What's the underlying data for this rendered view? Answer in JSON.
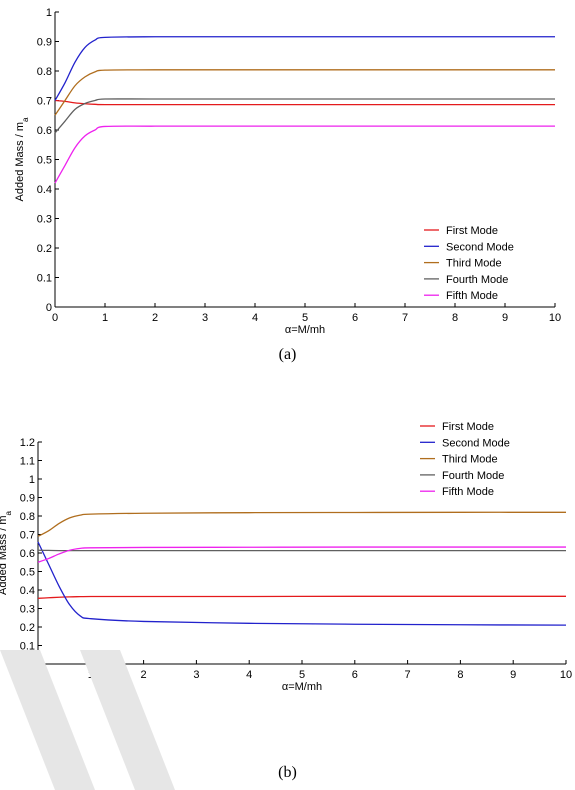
{
  "figures": [
    {
      "caption": "(a)",
      "chart_data": {
        "type": "line",
        "xlabel": "α=M/mh",
        "ylabel": "Added Mass / m",
        "ylabel_sub": "a",
        "xlim": [
          0,
          10
        ],
        "ylim": [
          0,
          1
        ],
        "xticks": [
          "0",
          "1",
          "2",
          "3",
          "4",
          "5",
          "6",
          "7",
          "8",
          "9",
          "10"
        ],
        "yticks": [
          "0",
          "0.1",
          "0.2",
          "0.3",
          "0.4",
          "0.5",
          "0.6",
          "0.7",
          "0.8",
          "0.9",
          "1"
        ],
        "legend_position": "bottom-right",
        "grid": false,
        "x": [
          0,
          0.2,
          0.4,
          0.6,
          0.8,
          1,
          2,
          4,
          6,
          8,
          10
        ],
        "series": [
          {
            "name": "First Mode",
            "color": "#e41a1c",
            "values": [
              0.7,
              0.697,
              0.692,
              0.689,
              0.687,
              0.686,
              0.686,
              0.686,
              0.686,
              0.686,
              0.686
            ]
          },
          {
            "name": "Second Mode",
            "color": "#2222cc",
            "values": [
              0.7,
              0.76,
              0.83,
              0.88,
              0.905,
              0.914,
              0.916,
              0.916,
              0.916,
              0.916,
              0.916
            ]
          },
          {
            "name": "Third Mode",
            "color": "#b06e1e",
            "values": [
              0.65,
              0.7,
              0.75,
              0.78,
              0.797,
              0.803,
              0.804,
              0.804,
              0.804,
              0.804,
              0.804
            ]
          },
          {
            "name": "Fourth Mode",
            "color": "#606060",
            "values": [
              0.59,
              0.63,
              0.67,
              0.69,
              0.7,
              0.705,
              0.705,
              0.705,
              0.705,
              0.705,
              0.705
            ]
          },
          {
            "name": "Fifth Mode",
            "color": "#ee22ee",
            "values": [
              0.42,
              0.48,
              0.54,
              0.58,
              0.6,
              0.612,
              0.613,
              0.613,
              0.613,
              0.613,
              0.613
            ]
          }
        ]
      }
    },
    {
      "caption": "(b)",
      "chart_data": {
        "type": "line",
        "xlabel": "α=M/mh",
        "ylabel": "Added Mass / m",
        "ylabel_sub": "a",
        "xlim": [
          0,
          10
        ],
        "ylim": [
          0,
          1.2
        ],
        "xticks": [
          "0",
          "1",
          "2",
          "3",
          "4",
          "5",
          "6",
          "7",
          "8",
          "9",
          "10"
        ],
        "yticks": [
          "0",
          "0.1",
          "0.2",
          "0.3",
          "0.4",
          "0.5",
          "0.6",
          "0.7",
          "0.8",
          "0.9",
          "1",
          "1.1",
          "1.2"
        ],
        "legend_position": "top-right",
        "grid": false,
        "x": [
          0,
          0.2,
          0.4,
          0.6,
          0.8,
          1,
          2,
          4,
          6,
          8,
          10
        ],
        "series": [
          {
            "name": "First Mode",
            "color": "#e41a1c",
            "values": [
              0.355,
              0.358,
              0.361,
              0.363,
              0.364,
              0.365,
              0.365,
              0.365,
              0.366,
              0.366,
              0.366
            ]
          },
          {
            "name": "Second Mode",
            "color": "#2222cc",
            "values": [
              0.66,
              0.54,
              0.42,
              0.32,
              0.26,
              0.245,
              0.23,
              0.22,
              0.215,
              0.212,
              0.21
            ]
          },
          {
            "name": "Third Mode",
            "color": "#b06e1e",
            "values": [
              0.69,
              0.72,
              0.76,
              0.79,
              0.805,
              0.81,
              0.815,
              0.818,
              0.819,
              0.82,
              0.82
            ]
          },
          {
            "name": "Fourth Mode",
            "color": "#606060",
            "values": [
              0.615,
              0.614,
              0.613,
              0.613,
              0.613,
              0.613,
              0.613,
              0.613,
              0.613,
              0.613,
              0.613
            ]
          },
          {
            "name": "Fifth Mode",
            "color": "#ee22ee",
            "values": [
              0.55,
              0.57,
              0.595,
              0.615,
              0.625,
              0.628,
              0.63,
              0.631,
              0.632,
              0.632,
              0.632
            ]
          }
        ]
      }
    }
  ]
}
